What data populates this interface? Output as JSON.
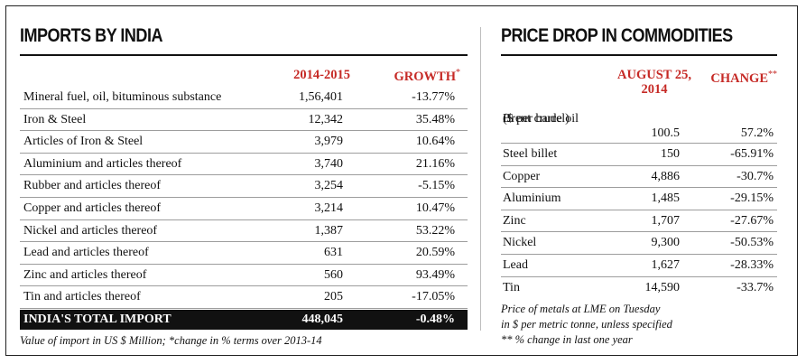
{
  "imports": {
    "title": "IMPORTS BY INDIA",
    "col_year": "2014-2015",
    "col_growth": "GROWTH",
    "col_growth_mark": "*",
    "rows": [
      {
        "name": "Mineral fuel, oil, bituminous substance",
        "value": "1,56,401",
        "growth": "-13.77%"
      },
      {
        "name": "Iron & Steel",
        "value": "12,342",
        "growth": "35.48%"
      },
      {
        "name": "Articles of Iron & Steel",
        "value": "3,979",
        "growth": "10.64%"
      },
      {
        "name": "Aluminium and articles thereof",
        "value": "3,740",
        "growth": "21.16%"
      },
      {
        "name": "Rubber and articles thereof",
        "value": "3,254",
        "growth": "-5.15%"
      },
      {
        "name": "Copper and articles thereof",
        "value": "3,214",
        "growth": "10.47%"
      },
      {
        "name": "Nickel and articles thereof",
        "value": "1,387",
        "growth": "53.22%"
      },
      {
        "name": "Lead and articles thereof",
        "value": "631",
        "growth": "20.59%"
      },
      {
        "name": "Zinc and articles thereof",
        "value": "560",
        "growth": "93.49%"
      },
      {
        "name": "Tin and articles thereof",
        "value": "205",
        "growth": "-17.05%"
      }
    ],
    "total": {
      "name": "INDIA'S TOTAL IMPORT",
      "value": "448,045",
      "growth": "-0.48%"
    },
    "note": "Value of import in US $ Million; *change in % terms over 2013-14"
  },
  "commodities": {
    "title": "PRICE DROP IN COMMODITIES",
    "col_date_line1": "AUGUST 25,",
    "col_date_line2": "2014",
    "col_change": "CHANGE",
    "col_change_mark": "**",
    "brent": {
      "line1": "Brent crude oil",
      "line2": "($ per barrel)",
      "value": "100.5",
      "change": "57.2%"
    },
    "rows": [
      {
        "name": "Steel billet",
        "value": "150",
        "change": "-65.91%"
      },
      {
        "name": "Copper",
        "value": "4,886",
        "change": "-30.7%"
      },
      {
        "name": "Aluminium",
        "value": "1,485",
        "change": "-29.15%"
      },
      {
        "name": "Zinc",
        "value": "1,707",
        "change": "-27.67%"
      },
      {
        "name": "Nickel",
        "value": "9,300",
        "change": "-50.53%"
      },
      {
        "name": "Lead",
        "value": "1,627",
        "change": "-28.33%"
      }
    ],
    "last_row": {
      "name": "Tin",
      "value": "14,590",
      "change": "-33.7%"
    },
    "note_line1": "Price of metals at LME on Tuesday",
    "note_line2": "in $ per metric tonne, unless specified",
    "note_line3": "** % change in last one year"
  }
}
